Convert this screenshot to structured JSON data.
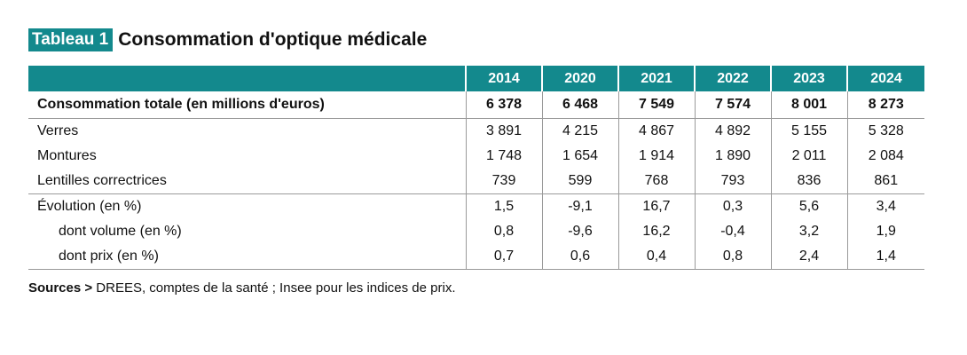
{
  "title": {
    "tag": "Tableau 1",
    "text": "Consommation d'optique médicale"
  },
  "columns": [
    "2014",
    "2020",
    "2021",
    "2022",
    "2023",
    "2024"
  ],
  "rows": [
    {
      "label": "Consommation totale (en millions d'euros)",
      "values": [
        "6 378",
        "6 468",
        "7 549",
        "7 574",
        "8 001",
        "8 273"
      ]
    },
    {
      "label": "Verres",
      "values": [
        "3 891",
        "4 215",
        "4 867",
        "4 892",
        "5 155",
        "5 328"
      ]
    },
    {
      "label": "Montures",
      "values": [
        "1 748",
        "1 654",
        "1 914",
        "1 890",
        "2 011",
        "2 084"
      ]
    },
    {
      "label": "Lentilles correctrices",
      "values": [
        "739",
        "599",
        "768",
        "793",
        "836",
        "861"
      ]
    },
    {
      "label": "Évolution (en %)",
      "values": [
        "1,5",
        "-9,1",
        "16,7",
        "0,3",
        "5,6",
        "3,4"
      ]
    },
    {
      "label": "dont volume (en %)",
      "values": [
        "0,8",
        "-9,6",
        "16,2",
        "-0,4",
        "3,2",
        "1,9"
      ]
    },
    {
      "label": "dont prix (en %)",
      "values": [
        "0,7",
        "0,6",
        "0,4",
        "0,8",
        "2,4",
        "1,4"
      ]
    }
  ],
  "source": {
    "label": "Sources >",
    "text": " DREES, comptes de la santé ; Insee pour les indices de prix."
  },
  "colors": {
    "header_bg": "#13898d",
    "header_text": "#ffffff"
  }
}
